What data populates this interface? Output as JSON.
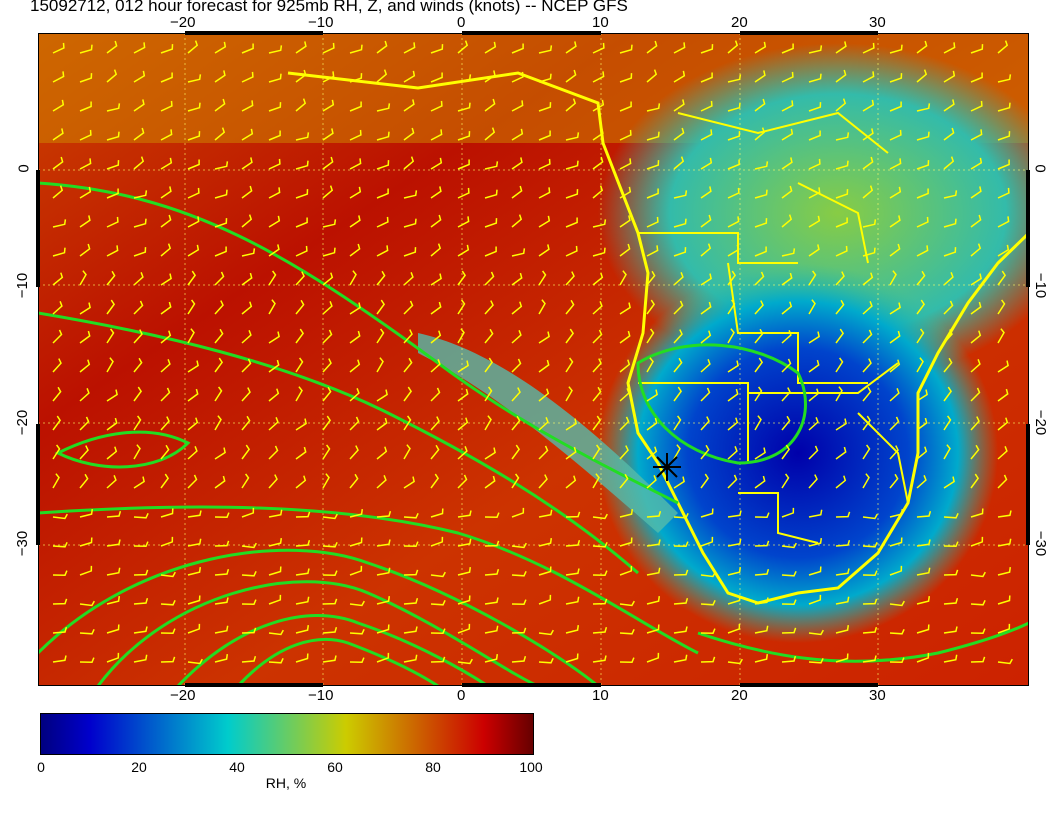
{
  "title": "15092712, 012 hour forecast for 925mb RH, Z, and winds (knots) -- NCEP GFS",
  "map": {
    "lon_ticks": [
      "−20",
      "−10",
      "0",
      "10",
      "20",
      "30"
    ],
    "lat_ticks": [
      "0",
      "−10",
      "−20",
      "−30"
    ],
    "fields": [
      "RH",
      "Z",
      "winds"
    ],
    "contour_color": "#22dd22",
    "wind_barb_color": "#ffff00",
    "coastline_color": "#ffff00",
    "marker": "star"
  },
  "colorbar": {
    "label": "RH, %",
    "ticks": [
      "0",
      "20",
      "40",
      "60",
      "80",
      "100"
    ],
    "range": [
      0,
      100
    ],
    "colors": [
      "#000080",
      "#0000cc",
      "#00cccc",
      "#cccc00",
      "#cc0000",
      "#660000"
    ]
  }
}
